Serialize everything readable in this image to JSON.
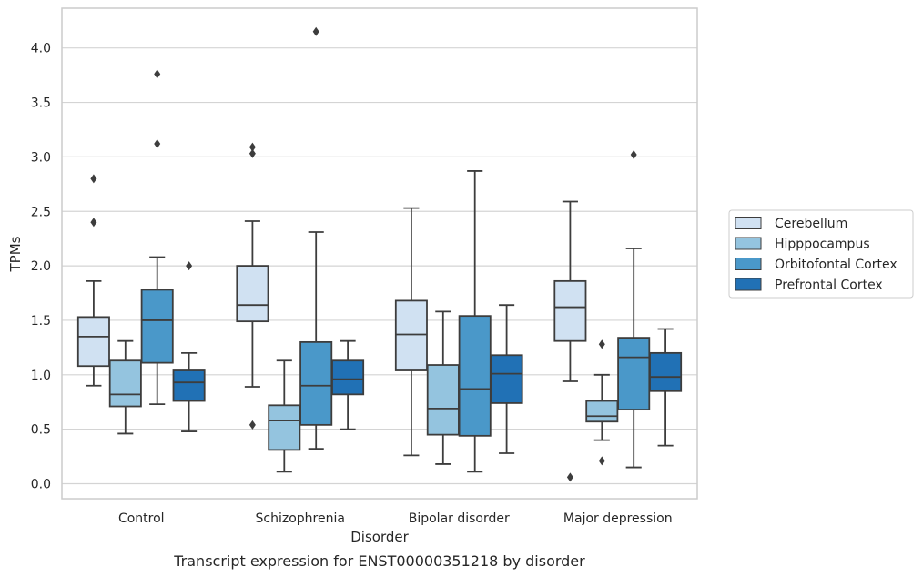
{
  "chart_data": {
    "type": "box",
    "caption": "Transcript expression for ENST00000351218 by disorder",
    "xlabel": "Disorder",
    "ylabel": "TPMs",
    "ylim": [
      -0.13,
      4.36
    ],
    "yticks": [
      0.0,
      0.5,
      1.0,
      1.5,
      2.0,
      2.5,
      3.0,
      3.5,
      4.0
    ],
    "ytick_labels": [
      "0.0",
      "0.5",
      "1.0",
      "1.5",
      "2.0",
      "2.5",
      "3.0",
      "3.5",
      "4.0"
    ],
    "grid": "horizontal",
    "legend_placement": "right-outside",
    "categories": [
      "Control",
      "Schizophrenia",
      "Bipolar disorder",
      "Major depression"
    ],
    "series": [
      {
        "name": "Cerebellum",
        "color": "#d0e1f2",
        "boxes": [
          {
            "whislo": 0.9,
            "q1": 1.08,
            "med": 1.35,
            "q3": 1.53,
            "whishi": 1.86,
            "fliers": [
              2.8,
              2.4
            ]
          },
          {
            "whislo": 0.89,
            "q1": 1.49,
            "med": 1.64,
            "q3": 2.0,
            "whishi": 2.41,
            "fliers": [
              3.09,
              3.03,
              0.54
            ]
          },
          {
            "whislo": 0.26,
            "q1": 1.04,
            "med": 1.37,
            "q3": 1.68,
            "whishi": 2.53,
            "fliers": []
          },
          {
            "whislo": 0.94,
            "q1": 1.31,
            "med": 1.62,
            "q3": 1.86,
            "whishi": 2.59,
            "fliers": [
              0.06
            ]
          }
        ]
      },
      {
        "name": "Hipppocampus",
        "color": "#94c4df",
        "boxes": [
          {
            "whislo": 0.46,
            "q1": 0.71,
            "med": 0.82,
            "q3": 1.13,
            "whishi": 1.31,
            "fliers": []
          },
          {
            "whislo": 0.11,
            "q1": 0.31,
            "med": 0.58,
            "q3": 0.72,
            "whishi": 1.13,
            "fliers": []
          },
          {
            "whislo": 0.18,
            "q1": 0.45,
            "med": 0.69,
            "q3": 1.09,
            "whishi": 1.58,
            "fliers": []
          },
          {
            "whislo": 0.4,
            "q1": 0.57,
            "med": 0.62,
            "q3": 0.76,
            "whishi": 1.0,
            "fliers": [
              1.28,
              0.21
            ]
          }
        ]
      },
      {
        "name": "Orbitofontal Cortex",
        "color": "#4a98c9",
        "boxes": [
          {
            "whislo": 0.73,
            "q1": 1.11,
            "med": 1.5,
            "q3": 1.78,
            "whishi": 2.08,
            "fliers": [
              3.76,
              3.12
            ]
          },
          {
            "whislo": 0.32,
            "q1": 0.54,
            "med": 0.9,
            "q3": 1.3,
            "whishi": 2.31,
            "fliers": [
              4.15
            ]
          },
          {
            "whislo": 0.11,
            "q1": 0.44,
            "med": 0.87,
            "q3": 1.54,
            "whishi": 2.87,
            "fliers": []
          },
          {
            "whislo": 0.15,
            "q1": 0.68,
            "med": 1.16,
            "q3": 1.34,
            "whishi": 2.16,
            "fliers": [
              3.02
            ]
          }
        ]
      },
      {
        "name": "Prefrontal Cortex",
        "color": "#2171b5",
        "boxes": [
          {
            "whislo": 0.48,
            "q1": 0.76,
            "med": 0.93,
            "q3": 1.04,
            "whishi": 1.2,
            "fliers": [
              2.0
            ]
          },
          {
            "whislo": 0.5,
            "q1": 0.82,
            "med": 0.96,
            "q3": 1.13,
            "whishi": 1.31,
            "fliers": []
          },
          {
            "whislo": 0.28,
            "q1": 0.74,
            "med": 1.01,
            "q3": 1.18,
            "whishi": 1.64,
            "fliers": []
          },
          {
            "whislo": 0.35,
            "q1": 0.85,
            "med": 0.98,
            "q3": 1.2,
            "whishi": 1.42,
            "fliers": []
          }
        ]
      }
    ]
  }
}
